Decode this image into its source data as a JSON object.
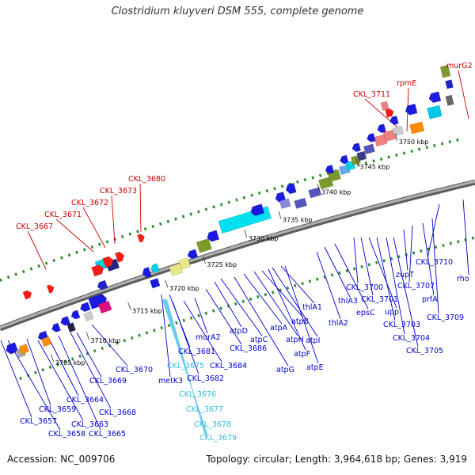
{
  "title": "Clostridium kluyveri DSM 555, complete genome",
  "footer": {
    "accession": "Accession: NC_009706",
    "topology": "Topology: circular; Length: 3,964,618 bp; Genes: 3,919"
  },
  "ticks": [
    "3705 kbp",
    "3710 kbp",
    "3715 kbp",
    "3720 kbp",
    "3725 kbp",
    "3730 kbp",
    "3735 kbp",
    "3740 kbp",
    "3745 kbp",
    "3750 kbp"
  ],
  "forward_genes": [
    "CKL_3667",
    "CKL_3671",
    "CKL_3672",
    "CKL_3673",
    "CKL_3680",
    "CKL_3711",
    "rpmE",
    "murG2"
  ],
  "reverse_genes": [
    "CKL_3657",
    "CKL_3658",
    "CKL_3659",
    "CKL_3663",
    "CKL_3664",
    "CKL_3665",
    "CKL_3668",
    "CKL_3669",
    "CKL_3670",
    "metK3",
    "CKL_3681",
    "CKL_3682",
    "CKL_3684",
    "murA2",
    "CKL_3686",
    "atpD",
    "atpC",
    "atpG",
    "atpA",
    "atpH",
    "atpB",
    "atpF",
    "atpI",
    "atpE",
    "thlA1",
    "thlA2",
    "thlA3",
    "epsC",
    "CKL_3700",
    "CKL_3701",
    "upp",
    "CKL_3703",
    "CKL_3704",
    "CKL_3705",
    "zupT",
    "CKL_3707",
    "prfA",
    "CKL_3709",
    "CKL_3710",
    "rho"
  ],
  "rna_genes": [
    "CKL_3675",
    "CKL_3676",
    "CKL_3677",
    "CKL_3678",
    "CKL_3679"
  ],
  "colors": {
    "forward_label": "#cc0000",
    "reverse_label": "#0000cc",
    "rna_label": "#33bbdd",
    "backbone": "#8a8a8a",
    "dots": "#2e8b2e",
    "gene_blue": "#1a1ae0"
  }
}
